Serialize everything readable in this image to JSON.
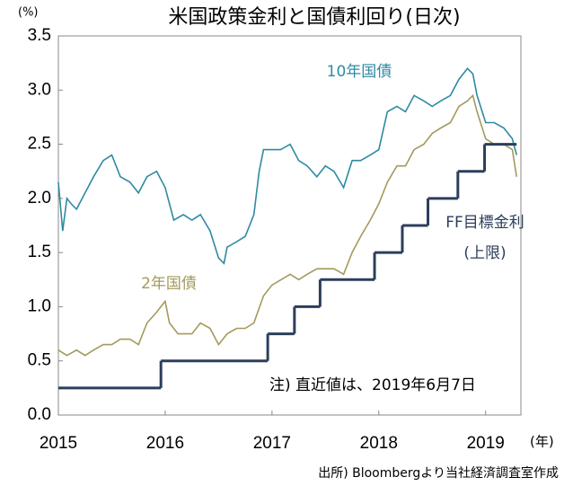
{
  "chart_data": {
    "type": "line",
    "title": "米国政策金利と国債利回り(日次)",
    "y_unit": "(%)",
    "x_unit": "(年)",
    "note": "注) 直近値は、2019年6月7日",
    "source": "出所) Bloombergより当社経済調査室作成",
    "xlim": [
      2015,
      2019.33
    ],
    "xticks": [
      2015,
      2016,
      2017,
      2018,
      2019
    ],
    "ylim": [
      0,
      3.5
    ],
    "yticks": [
      {
        "value": 0,
        "label": "0.0"
      },
      {
        "value": 0.5,
        "label": "0.5"
      },
      {
        "value": 1,
        "label": "1.0"
      },
      {
        "value": 1.5,
        "label": "1.5"
      },
      {
        "value": 2,
        "label": "2.0"
      },
      {
        "value": 2.5,
        "label": "2.5"
      },
      {
        "value": 3,
        "label": "3.0"
      },
      {
        "value": 3.5,
        "label": "3.5"
      }
    ],
    "series": [
      {
        "name": "10年国債",
        "color": "#2f8aa3",
        "x": [
          2015.0,
          2015.04,
          2015.08,
          2015.12,
          2015.17,
          2015.25,
          2015.33,
          2015.42,
          2015.5,
          2015.58,
          2015.67,
          2015.75,
          2015.83,
          2015.92,
          2016.0,
          2016.08,
          2016.17,
          2016.25,
          2016.33,
          2016.42,
          2016.5,
          2016.55,
          2016.58,
          2016.67,
          2016.75,
          2016.83,
          2016.88,
          2016.92,
          2017.0,
          2017.08,
          2017.17,
          2017.25,
          2017.33,
          2017.42,
          2017.5,
          2017.58,
          2017.67,
          2017.75,
          2017.83,
          2017.92,
          2018.0,
          2018.08,
          2018.17,
          2018.25,
          2018.33,
          2018.42,
          2018.5,
          2018.58,
          2018.67,
          2018.75,
          2018.83,
          2018.88,
          2018.92,
          2019.0,
          2019.08,
          2019.17,
          2019.25,
          2019.29
        ],
        "values": [
          2.15,
          1.7,
          2.0,
          1.95,
          1.9,
          2.05,
          2.2,
          2.35,
          2.4,
          2.2,
          2.15,
          2.05,
          2.2,
          2.25,
          2.1,
          1.8,
          1.85,
          1.8,
          1.85,
          1.7,
          1.45,
          1.4,
          1.55,
          1.6,
          1.65,
          1.85,
          2.25,
          2.45,
          2.45,
          2.45,
          2.5,
          2.35,
          2.3,
          2.2,
          2.3,
          2.25,
          2.1,
          2.35,
          2.35,
          2.4,
          2.45,
          2.8,
          2.85,
          2.8,
          2.95,
          2.9,
          2.85,
          2.9,
          2.95,
          3.1,
          3.2,
          3.15,
          2.95,
          2.7,
          2.7,
          2.65,
          2.55,
          2.4
        ]
      },
      {
        "name": "2年国債",
        "color": "#a39a5c",
        "x": [
          2015.0,
          2015.08,
          2015.17,
          2015.25,
          2015.33,
          2015.42,
          2015.5,
          2015.58,
          2015.67,
          2015.75,
          2015.83,
          2015.92,
          2016.0,
          2016.04,
          2016.12,
          2016.25,
          2016.33,
          2016.42,
          2016.5,
          2016.58,
          2016.67,
          2016.75,
          2016.83,
          2016.92,
          2017.0,
          2017.17,
          2017.25,
          2017.33,
          2017.42,
          2017.5,
          2017.58,
          2017.67,
          2017.75,
          2017.83,
          2017.92,
          2018.0,
          2018.08,
          2018.17,
          2018.25,
          2018.33,
          2018.42,
          2018.5,
          2018.58,
          2018.67,
          2018.75,
          2018.83,
          2018.88,
          2018.92,
          2019.0,
          2019.08,
          2019.17,
          2019.25,
          2019.29
        ],
        "values": [
          0.6,
          0.55,
          0.6,
          0.55,
          0.6,
          0.65,
          0.65,
          0.7,
          0.7,
          0.65,
          0.85,
          0.95,
          1.05,
          0.85,
          0.75,
          0.75,
          0.85,
          0.8,
          0.65,
          0.75,
          0.8,
          0.8,
          0.85,
          1.1,
          1.2,
          1.3,
          1.25,
          1.3,
          1.35,
          1.35,
          1.35,
          1.3,
          1.5,
          1.65,
          1.8,
          1.95,
          2.15,
          2.3,
          2.3,
          2.45,
          2.5,
          2.6,
          2.65,
          2.7,
          2.85,
          2.9,
          2.95,
          2.8,
          2.55,
          2.5,
          2.5,
          2.45,
          2.2
        ]
      },
      {
        "name": "FF目標金利",
        "color": "#2c3e5c",
        "step": true,
        "x": [
          2015.0,
          2015.96,
          2016.96,
          2017.21,
          2017.45,
          2017.96,
          2018.22,
          2018.46,
          2018.74,
          2018.99,
          2019.29
        ],
        "values": [
          0.25,
          0.5,
          0.75,
          1.0,
          1.25,
          1.5,
          1.75,
          2.0,
          2.25,
          2.5,
          2.5
        ]
      }
    ],
    "ff_sub": "(上限)"
  }
}
